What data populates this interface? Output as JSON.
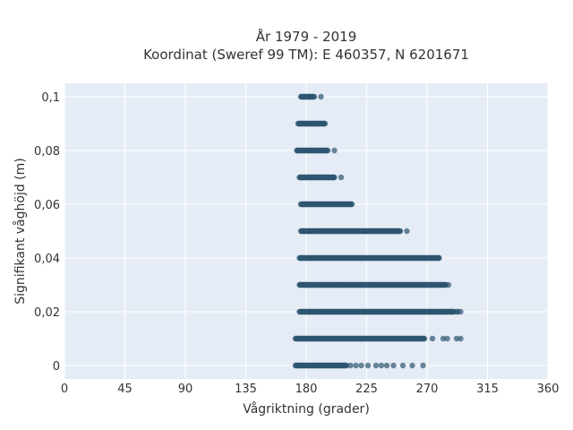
{
  "chart_data": {
    "type": "scatter",
    "title": "År 1979 - 2019",
    "subtitle": "Koordinat (Sweref 99 TM): E 460357, N 6201671",
    "xlabel": "Vågriktning (grader)",
    "ylabel": "Signifikant våghöjd (m)",
    "xlim": [
      0,
      360
    ],
    "ylim": [
      -0.005,
      0.105
    ],
    "x_ticks": [
      0,
      45,
      90,
      135,
      180,
      225,
      270,
      315,
      360
    ],
    "y_ticks": [
      0,
      0.02,
      0.04,
      0.06,
      0.08,
      0.1
    ],
    "y_tick_labels": [
      "0",
      "0,02",
      "0,04",
      "0,06",
      "0,08",
      "0,1"
    ],
    "grid": true,
    "marker_color": "#2e5570",
    "background": "#e5ecf6",
    "bands": [
      {
        "y": 0.0,
        "x_min": 172,
        "x_max": 210,
        "outliers": [
          213,
          217,
          221,
          226,
          232,
          236,
          240,
          245,
          252,
          259,
          267
        ]
      },
      {
        "y": 0.01,
        "x_min": 172,
        "x_max": 268,
        "outliers": [
          274,
          282,
          285,
          292,
          295
        ]
      },
      {
        "y": 0.02,
        "x_min": 175,
        "x_max": 290,
        "outliers": [
          292,
          293,
          295
        ]
      },
      {
        "y": 0.03,
        "x_min": 175,
        "x_max": 284,
        "outliers": [
          286
        ]
      },
      {
        "y": 0.04,
        "x_min": 175,
        "x_max": 279,
        "outliers": []
      },
      {
        "y": 0.05,
        "x_min": 176,
        "x_max": 250,
        "outliers": [
          255
        ]
      },
      {
        "y": 0.06,
        "x_min": 176,
        "x_max": 214,
        "outliers": []
      },
      {
        "y": 0.07,
        "x_min": 175,
        "x_max": 201,
        "outliers": [
          206
        ]
      },
      {
        "y": 0.08,
        "x_min": 173,
        "x_max": 196,
        "outliers": [
          201
        ]
      },
      {
        "y": 0.09,
        "x_min": 174,
        "x_max": 194,
        "outliers": []
      },
      {
        "y": 0.1,
        "x_min": 176,
        "x_max": 186,
        "outliers": [
          191
        ]
      }
    ]
  }
}
